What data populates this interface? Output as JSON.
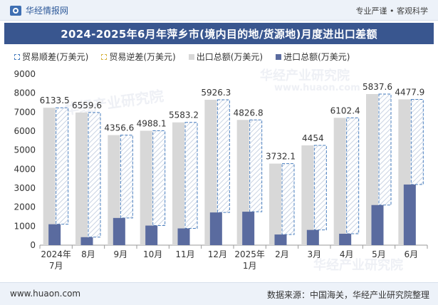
{
  "header": {
    "brand": "华经情报网",
    "tagline": "专业严谨 • 客观科学"
  },
  "footer": {
    "site": "www.huaon.com",
    "source": "数据来源：中国海关，华经产业研究院整理"
  },
  "watermark": {
    "text": "华经产业研究院",
    "url": "www.huaon.com"
  },
  "colors": {
    "title_bg": "#39568f",
    "export": "#d8d8d8",
    "import": "#5a6b9f",
    "surplus_border": "#4a7fbf",
    "deficit_border": "#d8b545",
    "header_bg": "#edf2f9"
  },
  "chart_data": {
    "type": "bar",
    "title": "2024-2025年6月年萍乡市(境内目的地/货源地)月度进出口差额",
    "legend": [
      "贸易顺差(万美元)",
      "贸易逆差(万美元)",
      "出口总额(万美元)",
      "进口总额(万美元)"
    ],
    "legend_position": "top-left",
    "categories": [
      "2024年\n7月",
      "8月",
      "9月",
      "10月",
      "11月",
      "12月",
      "2025年\n1月",
      "2月",
      "3月",
      "4月",
      "5月",
      "6月"
    ],
    "series": [
      {
        "name": "贸易顺差(万美元)",
        "values": [
          6133.5,
          6559.6,
          4356.6,
          4988.1,
          5583.2,
          5926.3,
          4826.8,
          3732.1,
          4454,
          6102.4,
          5837.6,
          4477.9
        ]
      },
      {
        "name": "出口总额(万美元)",
        "values": [
          7230,
          6980,
          5790,
          6020,
          6460,
          7650,
          6590,
          4290,
          5250,
          6700,
          7950,
          7670
        ]
      },
      {
        "name": "进口总额(万美元)",
        "values": [
          1100,
          420,
          1430,
          1030,
          880,
          1720,
          1760,
          560,
          800,
          600,
          2110,
          3190
        ]
      }
    ],
    "ylim": [
      0,
      9000
    ],
    "yticks": [
      0,
      1000,
      2000,
      3000,
      4000,
      5000,
      6000,
      7000,
      8000,
      9000
    ],
    "grid": false
  }
}
